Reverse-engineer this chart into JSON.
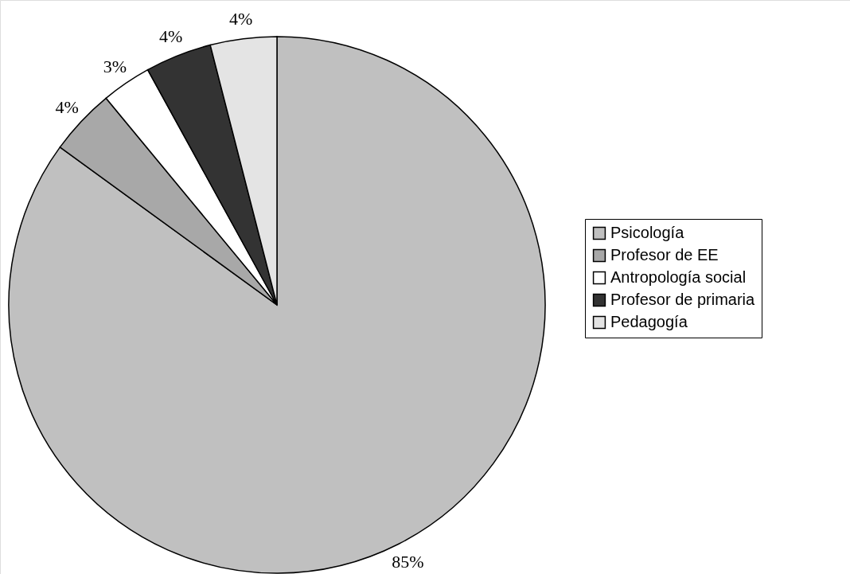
{
  "chart_data": {
    "type": "pie",
    "categories": [
      "Psicología",
      "Profesor de EE",
      "Antropología social",
      "Profesor de primaria",
      "Pedagogía"
    ],
    "values": [
      85,
      4,
      3,
      4,
      4
    ],
    "value_labels": [
      "85%",
      "4%",
      "3%",
      "4%",
      "4%"
    ],
    "colors": [
      "#c0c0c0",
      "#a8a8a8",
      "#ffffff",
      "#333333",
      "#e4e4e4"
    ],
    "legend": "right"
  }
}
